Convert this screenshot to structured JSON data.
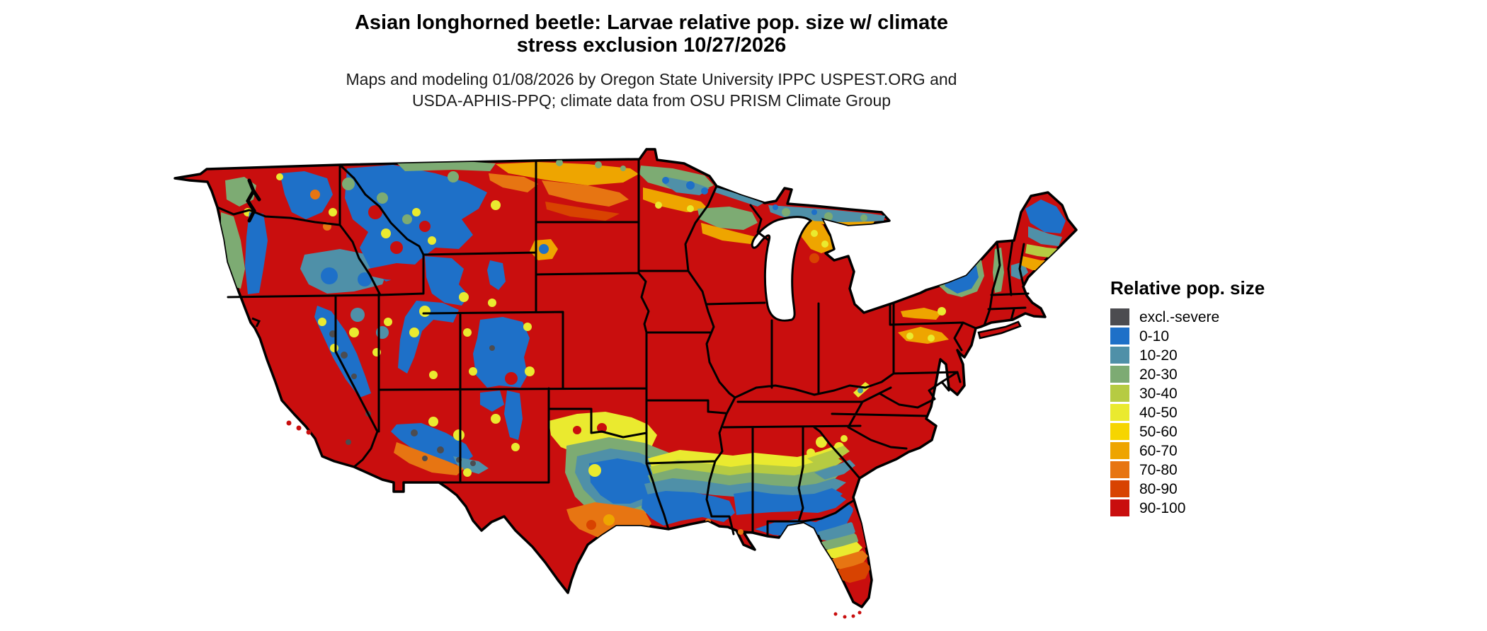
{
  "header": {
    "title_line1": "Asian longhorned beetle: Larvae relative pop. size w/ climate",
    "title_line2": "stress exclusion 10/27/2026",
    "subtitle_line1": "Maps and modeling 01/08/2026 by Oregon State University IPPC USPEST.ORG and",
    "subtitle_line2": "USDA-APHIS-PPQ; climate data from OSU PRISM Climate Group"
  },
  "legend": {
    "title": "Relative pop. size",
    "items": [
      {
        "label": "excl.-severe",
        "color": "#4c4c50"
      },
      {
        "label": "0-10",
        "color": "#1e70c8"
      },
      {
        "label": "10-20",
        "color": "#4f90a8"
      },
      {
        "label": "20-30",
        "color": "#7dab73"
      },
      {
        "label": "30-40",
        "color": "#b6cb42"
      },
      {
        "label": "40-50",
        "color": "#eaea2f"
      },
      {
        "label": "50-60",
        "color": "#f6d500"
      },
      {
        "label": "60-70",
        "color": "#eea500"
      },
      {
        "label": "70-80",
        "color": "#e77512"
      },
      {
        "label": "80-90",
        "color": "#d84301"
      },
      {
        "label": "90-100",
        "color": "#c90e0e"
      }
    ]
  },
  "map": {
    "region": "Contiguous United States",
    "outline_color": "#000000",
    "water_color": "#ffffff"
  },
  "chart_data": {
    "type": "heatmap",
    "map_region": "Contiguous United States choropleth raster",
    "variable": "Asian longhorned beetle larvae relative population size (%), with climate stress exclusion, 10/27/2026",
    "classes": [
      "excl.-severe",
      "0-10",
      "10-20",
      "20-30",
      "30-40",
      "40-50",
      "50-60",
      "60-70",
      "70-80",
      "80-90",
      "90-100"
    ],
    "class_colors": [
      "#4c4c50",
      "#1e70c8",
      "#4f90a8",
      "#7dab73",
      "#b6cb42",
      "#eaea2f",
      "#f6d500",
      "#eea500",
      "#e77512",
      "#d84301",
      "#c90e0e"
    ],
    "legend_position": "right",
    "observed_patterns": [
      "90-100 (red) dominates the central and eastern U.S., the Great Plains, California lowlands and the interior Southeast",
      "0-30 (blue/teal/green) covers western mountain ranges (Cascades, Sierra Nevada, northern Rockies, Colorado Rockies, Mogollon Rim), northern Minnesota, the upper Great Lakes shore, the Adirondacks, northern Maine, central Texas and a Gulf Coast band from Texas through north Florida",
      "30-90 yellow/orange transition bands ring the mountain zones, the northern tier (Montana to Michigan), southern Maine, and south Texas",
      "excl.-severe (dark gray) appears as scattered high-elevation pixels in the Sierra Nevada and Arizona/New Mexico highlands",
      "Florida grades from 0-10 (blue) in the panhandle through yellow/orange to 90-100 (red) in the south"
    ]
  }
}
